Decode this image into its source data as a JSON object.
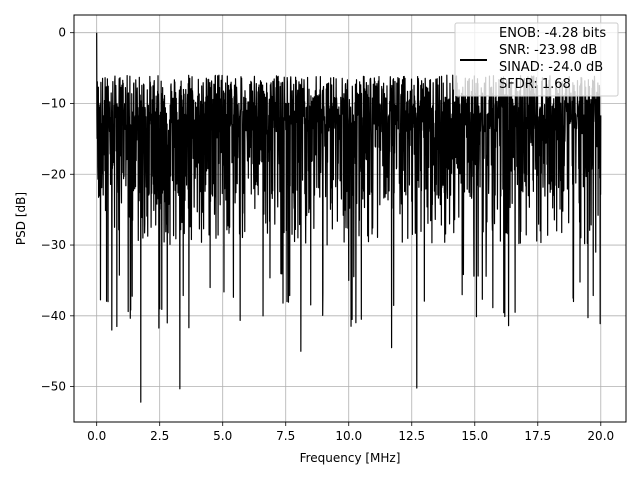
{
  "chart_data": {
    "type": "line",
    "xlabel": "Frequency [MHz]",
    "ylabel": "PSD [dB]",
    "xlim": [
      -0.9,
      21.0
    ],
    "ylim": [
      -55,
      2.5
    ],
    "xticks": [
      0.0,
      2.5,
      5.0,
      7.5,
      10.0,
      12.5,
      15.0,
      17.5,
      20.0
    ],
    "xtick_labels": [
      "0.0",
      "2.5",
      "5.0",
      "7.5",
      "10.0",
      "12.5",
      "15.0",
      "17.5",
      "20.0"
    ],
    "yticks": [
      0,
      -10,
      -20,
      -30,
      -40,
      -50
    ],
    "ytick_labels": [
      "0",
      "−10",
      "−20",
      "−30",
      "−40",
      "−50"
    ],
    "grid": true,
    "legend_position": "top-right",
    "series_color": "#000000",
    "legend": {
      "lines": [
        "ENOB: -4.28 bits",
        "SNR: -23.98 dB",
        "SINAD: -24.0 dB",
        "SFDR: 1.68"
      ]
    },
    "x_range": [
      0.0,
      20.0
    ],
    "band_y_range": [
      -30,
      -8
    ],
    "notable_points": [
      {
        "x": 0.0,
        "y": 0.0
      },
      {
        "x": 0.1,
        "y": -21.5
      },
      {
        "x": 0.45,
        "y": -38.0
      },
      {
        "x": 0.6,
        "y": -42.0
      },
      {
        "x": 0.8,
        "y": -41.5
      },
      {
        "x": 1.75,
        "y": -52.2
      },
      {
        "x": 2.5,
        "y": -39.0
      },
      {
        "x": 2.8,
        "y": -41.0
      },
      {
        "x": 3.3,
        "y": -50.3
      },
      {
        "x": 4.5,
        "y": -36.0
      },
      {
        "x": 6.6,
        "y": -40.0
      },
      {
        "x": 8.1,
        "y": -45.0
      },
      {
        "x": 10.0,
        "y": -35.0
      },
      {
        "x": 11.7,
        "y": -44.5
      },
      {
        "x": 12.7,
        "y": -50.2
      },
      {
        "x": 14.5,
        "y": -37.0
      },
      {
        "x": 16.6,
        "y": -39.5
      },
      {
        "x": 18.9,
        "y": -37.5
      },
      {
        "x": 19.8,
        "y": -31.0
      }
    ]
  }
}
